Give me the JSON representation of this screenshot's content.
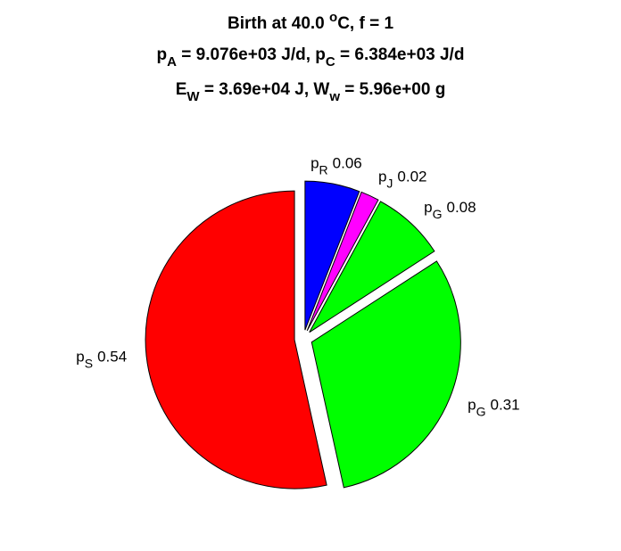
{
  "chart_data": {
    "type": "pie",
    "title": [
      [
        {
          "text": "Birth at 40.0 ",
          "script": "normal"
        },
        {
          "text": "o",
          "script": "sup"
        },
        {
          "text": "C, f = 1",
          "script": "normal"
        }
      ],
      [
        {
          "text": "p",
          "script": "normal"
        },
        {
          "text": "A",
          "script": "sub"
        },
        {
          "text": " = 9.076e+03 J/d, p",
          "script": "normal"
        },
        {
          "text": "C",
          "script": "sub"
        },
        {
          "text": " = 6.384e+03 J/d",
          "script": "normal"
        }
      ],
      [
        {
          "text": "E",
          "script": "normal"
        },
        {
          "text": "W",
          "script": "sub"
        },
        {
          "text": " = 3.69e+04 J, W",
          "script": "normal"
        },
        {
          "text": "w",
          "script": "sub"
        },
        {
          "text": " = 5.96e+00 g",
          "script": "normal"
        }
      ]
    ],
    "categories": [
      {
        "text": "p",
        "sub": "R"
      },
      {
        "text": "p",
        "sub": "J"
      },
      {
        "text": "p",
        "sub": "G"
      },
      {
        "text": "p",
        "sub": "G"
      },
      {
        "text": "p",
        "sub": "S"
      }
    ],
    "values": [
      0.06,
      0.02,
      0.08,
      0.31,
      0.54
    ],
    "colors": [
      "#0000ff",
      "#ff00ff",
      "#00ff00",
      "#00ff00",
      "#ff0000"
    ],
    "exploded": true
  }
}
